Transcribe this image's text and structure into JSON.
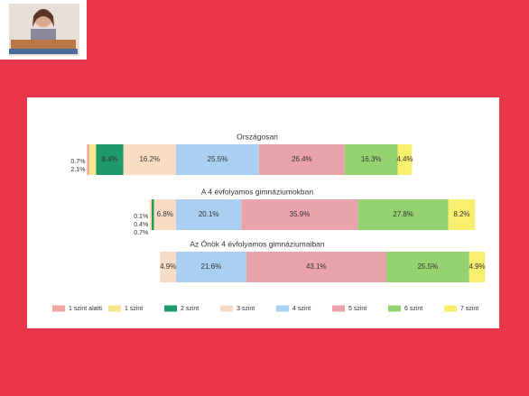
{
  "chart_data": {
    "type": "stacked-bar",
    "categories": [
      "Országosan",
      "A 4 évfolyamos gimnáziumokban",
      "Az Önök 4 évfolyamos gimnáziumaiban"
    ],
    "series": [
      {
        "name": "1 szint alatti",
        "color": "#f2a7a0",
        "values": [
          0.7,
          0.1,
          0
        ],
        "value_labels": [
          "0.7%",
          "0.1%",
          null
        ]
      },
      {
        "name": "1 szint",
        "color": "#f7e98e",
        "values": [
          2.1,
          0.4,
          0
        ],
        "value_labels": [
          "2.1%",
          "0.4%",
          null
        ]
      },
      {
        "name": "2 szint",
        "color": "#1f9a6b",
        "values": [
          8.4,
          0.7,
          0
        ],
        "value_labels": [
          "8.4%",
          "0.7%",
          null
        ]
      },
      {
        "name": "3 szint",
        "color": "#fadcc4",
        "values": [
          16.2,
          6.8,
          4.9
        ],
        "value_labels": [
          "16.2%",
          "6.8%",
          "4.9%"
        ]
      },
      {
        "name": "4 szint",
        "color": "#a9d0f2",
        "values": [
          25.5,
          20.1,
          21.6
        ],
        "value_labels": [
          "25.5%",
          "20.1%",
          "21.6%"
        ]
      },
      {
        "name": "5 szint",
        "color": "#eaa3ab",
        "values": [
          26.4,
          35.9,
          43.1
        ],
        "value_labels": [
          "26.4%",
          "35.9%",
          "43.1%"
        ]
      },
      {
        "name": "6 szint",
        "color": "#94d36f",
        "values": [
          16.3,
          27.8,
          25.5
        ],
        "value_labels": [
          "16.3%",
          "27.8%",
          "25.5%"
        ]
      },
      {
        "name": "7 szint",
        "color": "#f9ef6e",
        "values": [
          4.4,
          8.2,
          4.9
        ],
        "value_labels": [
          "4.4%",
          "8.2%",
          "4.9%"
        ]
      }
    ]
  }
}
